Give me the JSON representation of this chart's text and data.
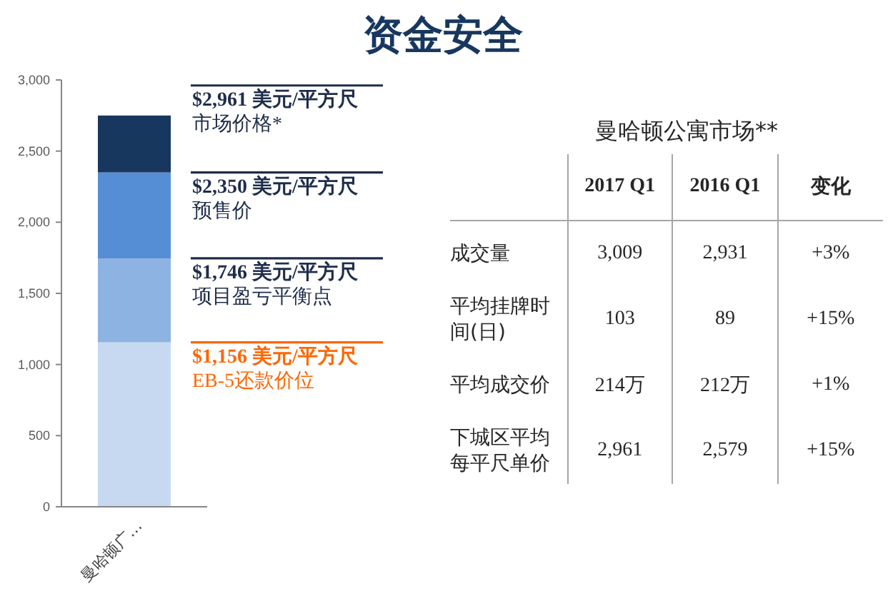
{
  "chart_data": [
    {
      "type": "other",
      "title": "资金安全"
    },
    {
      "type": "bar",
      "stacked": true,
      "categories": [
        "曼哈顿广…"
      ],
      "series": [
        {
          "color": "#c6d9f1",
          "values": [
            1156
          ]
        },
        {
          "color": "#8db3e2",
          "values": [
            590
          ]
        },
        {
          "color": "#558ed5",
          "values": [
            604
          ]
        },
        {
          "color": "#17375e",
          "values": [
            400
          ]
        }
      ],
      "ylim": [
        0,
        3000
      ],
      "yticks": [
        0,
        500,
        {
          "value": 1000,
          "label": "1,000"
        },
        {
          "value": 1500,
          "label": "1,500"
        },
        {
          "value": 2000,
          "label": "2,000"
        },
        {
          "value": 2500,
          "label": "2,500"
        },
        {
          "value": 3000,
          "label": "3,000"
        }
      ],
      "ref_lines": [
        {
          "axis": "y",
          "value": 2961,
          "label": "**$2,961 美元/平方尺**市场价格*",
          "color": "#1f2d4a"
        },
        {
          "axis": "y",
          "value": 2350,
          "label": "**$2,350 美元/平方尺**预售价",
          "color": "#1f2d4a"
        },
        {
          "axis": "y",
          "value": 1746,
          "label": "**$1,746 美元/平方尺**项目盈亏平衡点",
          "color": "#1f2d4a"
        },
        {
          "axis": "y",
          "value": 1156,
          "label": "**$1,156 美元/平方尺**EB-5还款价位",
          "color": "#ff6600"
        }
      ]
    },
    {
      "type": "other",
      "title": "曼哈顿公寓市场**",
      "categories": [
        "2017 Q1",
        "2016 Q1",
        "变化"
      ],
      "y_categories": [
        "成交量",
        "平均挂牌时间(日)",
        "平均成交价",
        "下城区平均每平尺单价"
      ],
      "cell_labels": [
        [
          "3,009",
          "2,931",
          "+3%"
        ],
        [
          "103",
          "89",
          "+15%"
        ],
        [
          "214万",
          "212万",
          "+1%"
        ],
        [
          "2,961",
          "2,579",
          "+15%"
        ]
      ]
    }
  ]
}
